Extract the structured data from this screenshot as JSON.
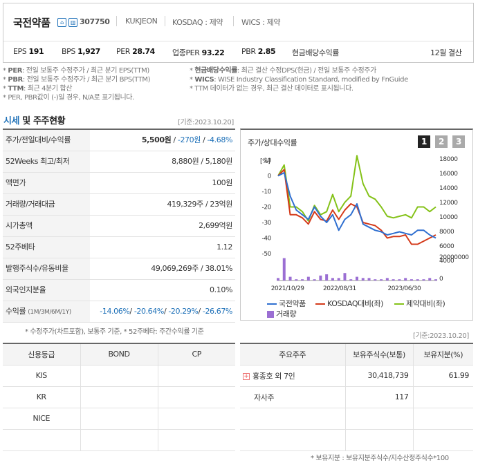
{
  "header": {
    "name": "국전약품",
    "code": "307750",
    "info": [
      "KUKJEON",
      "KOSDAQ : 제약",
      "WICS : 제약"
    ],
    "metrics": [
      {
        "label": "EPS",
        "value": "191"
      },
      {
        "label": "BPS",
        "value": "1,927"
      },
      {
        "label": "PER",
        "value": "28.74"
      },
      {
        "label": "업종PER",
        "value": "93.22"
      },
      {
        "label": "PBR",
        "value": "2.85"
      },
      {
        "label": "현금배당수익률",
        "value": ""
      }
    ],
    "fiscal": "12월 결산"
  },
  "notes": {
    "left": [
      {
        "key": "PER",
        "text": ": 전일 보통주 수정주가 / 최근 분기 EPS(TTM)"
      },
      {
        "key": "PBR",
        "text": ": 전일 보통주 수정주가 / 최근 분기 BPS(TTM)"
      },
      {
        "key": "TTM",
        "text": ": 최근 4분기 합산"
      },
      {
        "key": "",
        "text": "PER, PBR값이 (-)일 경우, N/A로 표기됩니다."
      }
    ],
    "right": [
      {
        "key": "현금배당수익률",
        "text": ": 최근 결산 수정DPS(현금) / 전일 보통주 수정주가"
      },
      {
        "key": "WICS",
        "text": ": WISE Industry Classification Standard, modified by FnGuide"
      },
      {
        "key": "",
        "text": "TTM 데이터가 없는 경우, 최근 결산 데이터로 표시됩니다."
      }
    ]
  },
  "section": {
    "title_hl": "시세",
    "title_rest": "및 주주현황",
    "base": "[기준:2023.10.20]"
  },
  "quote_rows": [
    {
      "label": "주가/전일대비/수익률",
      "value": ""
    },
    {
      "label": "52Weeks 최고/최저",
      "value": "8,880원 / 5,180원"
    },
    {
      "label": "액면가",
      "value": "100원"
    },
    {
      "label": "거래량/거래대금",
      "value": "419,329주 / 23억원"
    },
    {
      "label": "시가총액",
      "value": "2,699억원"
    },
    {
      "label": "52주베타",
      "value": "1.12"
    },
    {
      "label": "발행주식수/유동비율",
      "value": "49,069,269주 / 38.01%"
    },
    {
      "label": "외국인지분율",
      "value": "0.10%"
    },
    {
      "label": "수익률",
      "label_sub": "(1M/3M/6M/1Y)",
      "value": ""
    }
  ],
  "price": {
    "value": "5,500원",
    "change": "-270원",
    "rate": "-4.68%"
  },
  "returns": [
    "-14.06%",
    "-20.64%",
    "-20.29%",
    "-26.67%"
  ],
  "quote_footnote": "* 수정주가(차트포함), 보통주 기준, * 52주베타: 주간수익률 기준",
  "chart_panel": {
    "title": "주가/상대수익률",
    "buttons": [
      "1",
      "2",
      "3"
    ]
  },
  "chart_data": {
    "type": "line",
    "x_ticks": [
      "2021/10/29",
      "2022/08/31",
      "2023/06/30"
    ],
    "y_left_unit": "[%]",
    "y_left_ticks": [
      10,
      0,
      -10,
      -20,
      -30,
      -40,
      -50
    ],
    "ylim_left": [
      -50,
      10
    ],
    "y_right_ticks": [
      "18000",
      "16000",
      "14000",
      "12000",
      "10000",
      "8000",
      "6000",
      "4000"
    ],
    "ylim_right": [
      4000,
      18000
    ],
    "volume_ticks": [
      "20000000",
      "0"
    ],
    "series": [
      {
        "name": "국전약품",
        "color": "#2f6fd0",
        "axis": "left",
        "values": [
          0,
          2,
          -13,
          -22,
          -25,
          -28,
          -20,
          -26,
          -30,
          -25,
          -35,
          -28,
          -25,
          -18,
          -31,
          -33,
          -35,
          -36,
          -38,
          -37,
          -36,
          -37,
          -38,
          -35,
          -35,
          -38,
          -40
        ]
      },
      {
        "name": "KOSDAQ대비(좌)",
        "color": "#d43a1a",
        "axis": "left",
        "values": [
          0,
          4,
          -25,
          -25,
          -27,
          -31,
          -23,
          -28,
          -29,
          -22,
          -28,
          -22,
          -18,
          -20,
          -30,
          -31,
          -32,
          -35,
          -40,
          -39,
          -39,
          -38,
          -44,
          -44,
          -42,
          -40,
          -38
        ]
      },
      {
        "name": "제약대비(좌)",
        "color": "#84c218",
        "axis": "left",
        "values": [
          0,
          7,
          -20,
          -20,
          -23,
          -29,
          -19,
          -25,
          -23,
          -12,
          -23,
          -17,
          -13,
          13,
          -5,
          -13,
          -15,
          -20,
          -26,
          -27,
          -26,
          -25,
          -27,
          -20,
          -20,
          -23,
          -20
        ]
      },
      {
        "name": "거래량",
        "color": "#9b6fd3",
        "axis": "volume",
        "values": [
          2,
          18,
          3,
          1,
          1,
          3,
          1,
          4,
          5,
          2,
          2,
          6,
          1,
          3,
          2,
          2,
          1,
          1,
          2,
          1,
          1,
          2,
          1,
          1,
          1,
          2,
          1
        ]
      }
    ]
  },
  "credit": {
    "headers": [
      "신용등급",
      "BOND",
      "CP"
    ],
    "rows": [
      [
        "KIS",
        "",
        ""
      ],
      [
        "KR",
        "",
        ""
      ],
      [
        "NICE",
        "",
        ""
      ],
      [
        "",
        "",
        ""
      ]
    ]
  },
  "holders": {
    "base": "[기준:2023.10.20]",
    "headers": [
      "주요주주",
      "보유주식수(보통)",
      "보유지분(%)"
    ],
    "rows": [
      [
        "홍종호 외 7인",
        "30,418,739",
        "61.99"
      ],
      [
        "자사주",
        "117",
        ""
      ],
      [
        "",
        "",
        ""
      ],
      [
        "",
        "",
        ""
      ]
    ],
    "footnote": "* 보유지분 : 보유지분주식수/지수산정주식수*100"
  }
}
